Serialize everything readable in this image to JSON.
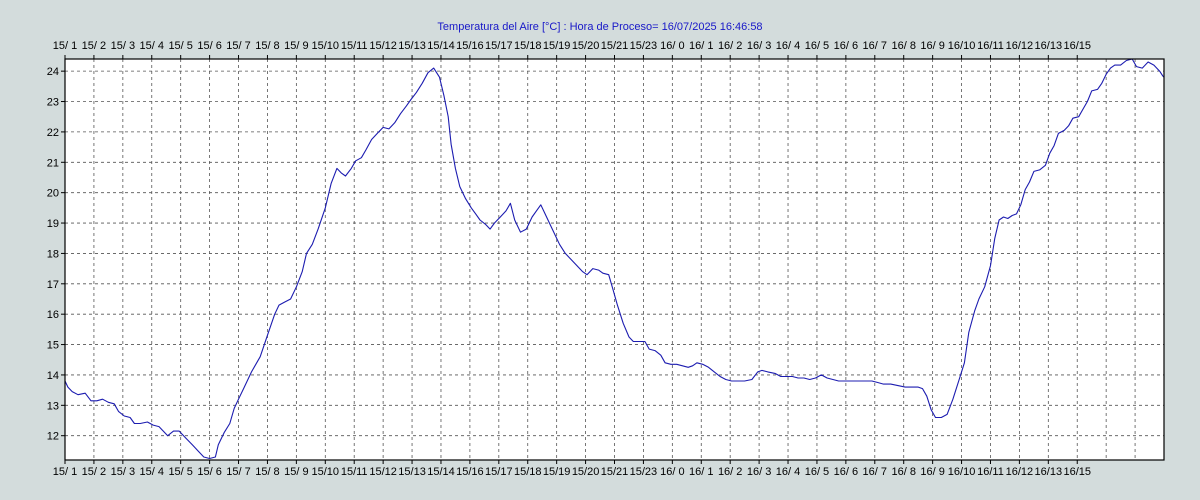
{
  "chart_data": {
    "type": "line",
    "title": "Temperatura del Aire [°C] : Hora de Proceso= 16/07/2025 16:46:58",
    "xlabel": "",
    "ylabel": "",
    "grid": true,
    "ylim": [
      11.2,
      24.4
    ],
    "xlim": [
      0,
      36
    ],
    "x_ticks_top": [
      "15/ 1",
      "15/ 2",
      "15/ 3",
      "15/ 4",
      "15/ 5",
      "15/ 6",
      "15/ 7",
      "15/ 8",
      "15/ 9",
      "15/10",
      "15/11",
      "15/12",
      "15/13",
      "15/14",
      "15/16",
      "15/17",
      "15/18",
      "15/19",
      "15/20",
      "15/21",
      "15/23",
      "16/ 0",
      "16/ 1",
      "16/ 2",
      "16/ 3",
      "16/ 4",
      "16/ 5",
      "16/ 6",
      "16/ 7",
      "16/ 8",
      "16/ 9",
      "16/10",
      "16/11",
      "16/12",
      "16/13",
      "16/15"
    ],
    "x_ticks_bottom": [
      "15/ 1",
      "15/ 2",
      "15/ 3",
      "15/ 4",
      "15/ 5",
      "15/ 6",
      "15/ 7",
      "15/ 8",
      "15/ 9",
      "15/10",
      "15/11",
      "15/12",
      "15/13",
      "15/14",
      "15/16",
      "15/17",
      "15/18",
      "15/19",
      "15/20",
      "15/21",
      "15/23",
      "16/ 0",
      "16/ 1",
      "16/ 2",
      "16/ 3",
      "16/ 4",
      "16/ 5",
      "16/ 6",
      "16/ 7",
      "16/ 8",
      "16/ 9",
      "16/10",
      "16/11",
      "16/12",
      "16/13",
      "16/15"
    ],
    "y_ticks": [
      12,
      13,
      14,
      15,
      16,
      17,
      18,
      19,
      20,
      21,
      22,
      23,
      24
    ],
    "series": [
      {
        "color": "#1c1cb0",
        "points": [
          [
            0.0,
            13.8
          ],
          [
            0.1,
            13.6
          ],
          [
            0.25,
            13.45
          ],
          [
            0.45,
            13.35
          ],
          [
            0.7,
            13.4
          ],
          [
            0.9,
            13.15
          ],
          [
            1.1,
            13.15
          ],
          [
            1.3,
            13.2
          ],
          [
            1.5,
            13.1
          ],
          [
            1.7,
            13.05
          ],
          [
            1.85,
            12.8
          ],
          [
            2.05,
            12.65
          ],
          [
            2.25,
            12.6
          ],
          [
            2.4,
            12.4
          ],
          [
            2.6,
            12.4
          ],
          [
            2.85,
            12.45
          ],
          [
            3.05,
            12.35
          ],
          [
            3.25,
            12.3
          ],
          [
            3.4,
            12.15
          ],
          [
            3.55,
            12.0
          ],
          [
            3.75,
            12.15
          ],
          [
            3.95,
            12.15
          ],
          [
            4.15,
            11.95
          ],
          [
            4.4,
            11.7
          ],
          [
            4.6,
            11.5
          ],
          [
            4.8,
            11.3
          ],
          [
            5.0,
            11.25
          ],
          [
            5.2,
            11.3
          ],
          [
            5.3,
            11.7
          ],
          [
            5.5,
            12.1
          ],
          [
            5.7,
            12.4
          ],
          [
            5.85,
            12.9
          ],
          [
            6.0,
            13.2
          ],
          [
            6.2,
            13.6
          ],
          [
            6.45,
            14.1
          ],
          [
            6.75,
            14.6
          ],
          [
            7.0,
            15.3
          ],
          [
            7.25,
            16.0
          ],
          [
            7.4,
            16.3
          ],
          [
            7.6,
            16.4
          ],
          [
            7.8,
            16.5
          ],
          [
            8.0,
            16.9
          ],
          [
            8.2,
            17.4
          ],
          [
            8.35,
            18.0
          ],
          [
            8.55,
            18.3
          ],
          [
            8.75,
            18.8
          ],
          [
            9.0,
            19.5
          ],
          [
            9.2,
            20.3
          ],
          [
            9.4,
            20.8
          ],
          [
            9.55,
            20.65
          ],
          [
            9.7,
            20.55
          ],
          [
            9.9,
            20.8
          ],
          [
            10.05,
            21.05
          ],
          [
            10.25,
            21.15
          ],
          [
            10.4,
            21.4
          ],
          [
            10.6,
            21.75
          ],
          [
            10.8,
            21.95
          ],
          [
            11.0,
            22.15
          ],
          [
            11.2,
            22.1
          ],
          [
            11.4,
            22.3
          ],
          [
            11.6,
            22.6
          ],
          [
            11.8,
            22.85
          ],
          [
            11.95,
            23.05
          ],
          [
            12.15,
            23.3
          ],
          [
            12.35,
            23.6
          ],
          [
            12.55,
            23.95
          ],
          [
            12.75,
            24.1
          ],
          [
            12.95,
            23.8
          ],
          [
            13.1,
            23.2
          ],
          [
            13.25,
            22.5
          ],
          [
            13.35,
            21.6
          ],
          [
            13.5,
            20.8
          ],
          [
            13.65,
            20.2
          ],
          [
            13.85,
            19.8
          ],
          [
            14.05,
            19.5
          ],
          [
            14.2,
            19.3
          ],
          [
            14.35,
            19.1
          ],
          [
            14.55,
            18.95
          ],
          [
            14.7,
            18.8
          ],
          [
            14.85,
            19.0
          ],
          [
            15.05,
            19.2
          ],
          [
            15.25,
            19.4
          ],
          [
            15.4,
            19.65
          ],
          [
            15.55,
            19.1
          ],
          [
            15.75,
            18.7
          ],
          [
            15.95,
            18.8
          ],
          [
            16.15,
            19.2
          ],
          [
            16.3,
            19.4
          ],
          [
            16.45,
            19.6
          ],
          [
            16.6,
            19.3
          ],
          [
            16.85,
            18.8
          ],
          [
            17.1,
            18.3
          ],
          [
            17.3,
            18.0
          ],
          [
            17.5,
            17.8
          ],
          [
            17.7,
            17.6
          ],
          [
            17.9,
            17.4
          ],
          [
            18.05,
            17.3
          ],
          [
            18.25,
            17.5
          ],
          [
            18.45,
            17.45
          ],
          [
            18.6,
            17.35
          ],
          [
            18.8,
            17.3
          ],
          [
            18.95,
            16.8
          ],
          [
            19.1,
            16.3
          ],
          [
            19.3,
            15.7
          ],
          [
            19.5,
            15.25
          ],
          [
            19.65,
            15.1
          ],
          [
            19.85,
            15.1
          ],
          [
            20.05,
            15.1
          ],
          [
            20.2,
            14.85
          ],
          [
            20.4,
            14.8
          ],
          [
            20.6,
            14.65
          ],
          [
            20.75,
            14.4
          ],
          [
            20.95,
            14.35
          ],
          [
            21.15,
            14.35
          ],
          [
            21.35,
            14.3
          ],
          [
            21.55,
            14.25
          ],
          [
            21.7,
            14.3
          ],
          [
            21.85,
            14.4
          ],
          [
            22.05,
            14.35
          ],
          [
            22.25,
            14.25
          ],
          [
            22.45,
            14.1
          ],
          [
            22.65,
            13.95
          ],
          [
            22.85,
            13.85
          ],
          [
            23.05,
            13.8
          ],
          [
            23.3,
            13.8
          ],
          [
            23.5,
            13.8
          ],
          [
            23.75,
            13.85
          ],
          [
            23.95,
            14.1
          ],
          [
            24.1,
            14.15
          ],
          [
            24.3,
            14.1
          ],
          [
            24.55,
            14.05
          ],
          [
            24.75,
            13.95
          ],
          [
            24.95,
            13.95
          ],
          [
            25.15,
            13.95
          ],
          [
            25.35,
            13.9
          ],
          [
            25.55,
            13.9
          ],
          [
            25.75,
            13.85
          ],
          [
            25.95,
            13.9
          ],
          [
            26.15,
            14.0
          ],
          [
            26.35,
            13.9
          ],
          [
            26.55,
            13.85
          ],
          [
            26.75,
            13.8
          ],
          [
            27.0,
            13.8
          ],
          [
            27.3,
            13.8
          ],
          [
            27.6,
            13.8
          ],
          [
            27.9,
            13.8
          ],
          [
            28.1,
            13.75
          ],
          [
            28.3,
            13.7
          ],
          [
            28.55,
            13.7
          ],
          [
            28.8,
            13.65
          ],
          [
            29.05,
            13.6
          ],
          [
            29.3,
            13.6
          ],
          [
            29.5,
            13.6
          ],
          [
            29.65,
            13.55
          ],
          [
            29.8,
            13.3
          ],
          [
            29.95,
            12.85
          ],
          [
            30.1,
            12.6
          ],
          [
            30.3,
            12.6
          ],
          [
            30.5,
            12.7
          ],
          [
            30.7,
            13.2
          ],
          [
            30.9,
            13.8
          ],
          [
            31.1,
            14.4
          ],
          [
            31.25,
            15.4
          ],
          [
            31.45,
            16.1
          ],
          [
            31.6,
            16.5
          ],
          [
            31.8,
            16.9
          ],
          [
            32.0,
            17.6
          ],
          [
            32.15,
            18.5
          ],
          [
            32.3,
            19.1
          ],
          [
            32.45,
            19.2
          ],
          [
            32.6,
            19.15
          ],
          [
            32.75,
            19.25
          ],
          [
            32.9,
            19.3
          ],
          [
            33.05,
            19.6
          ],
          [
            33.2,
            20.1
          ],
          [
            33.35,
            20.35
          ],
          [
            33.5,
            20.7
          ],
          [
            33.7,
            20.75
          ],
          [
            33.9,
            20.9
          ],
          [
            34.05,
            21.3
          ],
          [
            34.2,
            21.55
          ],
          [
            34.35,
            21.95
          ],
          [
            34.55,
            22.05
          ],
          [
            34.7,
            22.2
          ],
          [
            34.85,
            22.45
          ],
          [
            35.05,
            22.5
          ],
          [
            35.2,
            22.75
          ],
          [
            35.35,
            23.0
          ],
          [
            35.5,
            23.35
          ],
          [
            35.7,
            23.4
          ],
          [
            35.85,
            23.6
          ],
          [
            36.0,
            23.9
          ],
          [
            36.15,
            24.1
          ],
          [
            36.3,
            24.2
          ],
          [
            36.5,
            24.2
          ],
          [
            36.7,
            24.35
          ],
          [
            36.9,
            24.4
          ],
          [
            37.05,
            24.15
          ],
          [
            37.25,
            24.1
          ],
          [
            37.45,
            24.3
          ],
          [
            37.65,
            24.2
          ],
          [
            37.85,
            24.0
          ],
          [
            37.95,
            23.85
          ],
          [
            38.0,
            23.8
          ]
        ]
      }
    ]
  },
  "colors": {
    "background": "#d3dcdc",
    "plot_background": "#ffffff",
    "grid": "#555555",
    "axis": "#000000",
    "title": "#1818c8"
  }
}
